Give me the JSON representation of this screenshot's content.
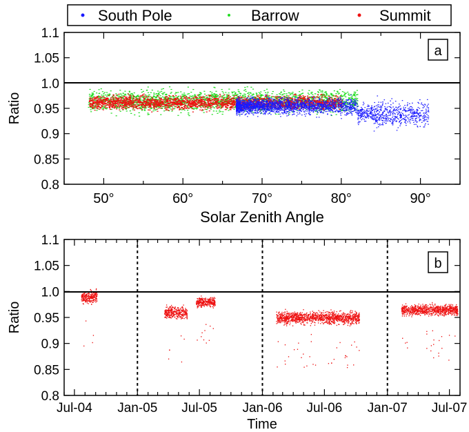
{
  "legend": {
    "entries": [
      {
        "name": "South Pole",
        "color": "#1a1aff"
      },
      {
        "name": "Barrow",
        "color": "#22dd22"
      },
      {
        "name": "Summit",
        "color": "#ee1111"
      }
    ]
  },
  "chart_data": [
    {
      "type": "scatter",
      "panel_label": "a",
      "xlabel": "Solar Zenith Angle",
      "ylabel": "Ratio",
      "xlim": [
        45,
        95
      ],
      "ylim": [
        0.8,
        1.1
      ],
      "x_ticks": [
        "50°",
        "60°",
        "70°",
        "80°",
        "90°"
      ],
      "x_tick_values": [
        50,
        60,
        70,
        80,
        90
      ],
      "y_ticks": [
        "0.8",
        "0.85",
        "0.9",
        "0.95",
        "1.0",
        "1.05",
        "1.1"
      ],
      "y_tick_values": [
        0.8,
        0.85,
        0.9,
        0.95,
        1.0,
        1.05,
        1.1
      ],
      "reference_line": 1.0,
      "series": [
        {
          "name": "Barrow",
          "color": "#22dd22",
          "x_range": [
            48,
            82
          ],
          "y_center": 0.965,
          "y_spread": 0.04
        },
        {
          "name": "Summit",
          "color": "#ee1111",
          "x_range": [
            48,
            80
          ],
          "y_center": 0.962,
          "y_spread": 0.025
        },
        {
          "name": "South Pole",
          "color": "#1a1aff",
          "x_range": [
            66.7,
            91
          ],
          "y_center": 0.955,
          "y_spread": 0.03
        }
      ]
    },
    {
      "type": "scatter",
      "panel_label": "b",
      "xlabel": "Time",
      "ylabel": "Ratio",
      "x_ticks": [
        "Jul-04",
        "Jan-05",
        "Jul-05",
        "Jan-06",
        "Jul-06",
        "Jan-07",
        "Jul-07"
      ],
      "xlim": [
        "2004-06-01",
        "2007-08-01"
      ],
      "ylim": [
        0.8,
        1.1
      ],
      "y_ticks": [
        "0.8",
        "0.85",
        "0.9",
        "0.95",
        "1.0",
        "1.05",
        "1.1"
      ],
      "y_tick_values": [
        0.8,
        0.85,
        0.9,
        0.95,
        1.0,
        1.05,
        1.1
      ],
      "reference_line": 1.0,
      "year_boundaries": [
        "Jan-05",
        "Jan-06",
        "Jan-07"
      ],
      "series": [
        {
          "name": "Summit",
          "color": "#ee1111",
          "clusters": [
            {
              "start": "2004-07-20",
              "end": "2004-09-05",
              "y_center": 0.99,
              "y_spread": 0.02
            },
            {
              "start": "2005-03-20",
              "end": "2005-05-25",
              "y_center": 0.96,
              "y_spread": 0.02
            },
            {
              "start": "2005-06-20",
              "end": "2005-08-15",
              "y_center": 0.98,
              "y_spread": 0.015
            },
            {
              "start": "2006-02-10",
              "end": "2006-10-10",
              "y_center": 0.95,
              "y_spread": 0.02
            },
            {
              "start": "2007-02-10",
              "end": "2007-07-25",
              "y_center": 0.965,
              "y_spread": 0.018
            }
          ]
        }
      ]
    }
  ]
}
